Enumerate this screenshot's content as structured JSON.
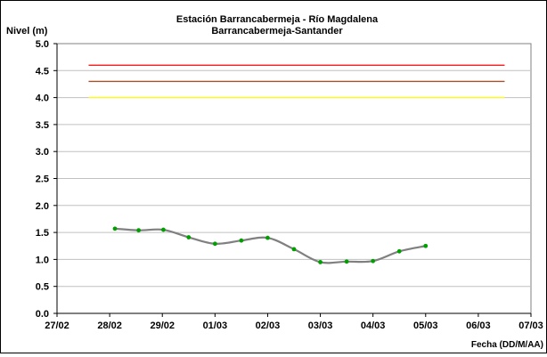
{
  "chart_data": {
    "type": "line",
    "title": "Estación Barrancabermeja - Río Magdalena",
    "subtitle": "Barrancabermeja-Santander",
    "ylabel": "Nivel (m)",
    "xlabel": "Fecha (DD/M/AA)",
    "ylim": [
      0.0,
      5.0
    ],
    "xlim": [
      0,
      9
    ],
    "x_ticks": [
      {
        "value": 0,
        "label": "27/02"
      },
      {
        "value": 1,
        "label": "28/02"
      },
      {
        "value": 2,
        "label": "29/02"
      },
      {
        "value": 3,
        "label": "01/03"
      },
      {
        "value": 4,
        "label": "02/03"
      },
      {
        "value": 5,
        "label": "03/03"
      },
      {
        "value": 6,
        "label": "04/03"
      },
      {
        "value": 7,
        "label": "05/03"
      },
      {
        "value": 8,
        "label": "06/03"
      },
      {
        "value": 9,
        "label": "07/03"
      }
    ],
    "y_ticks": [
      {
        "value": 0.0,
        "label": "0.0"
      },
      {
        "value": 0.5,
        "label": "0.5"
      },
      {
        "value": 1.0,
        "label": "1.0"
      },
      {
        "value": 1.5,
        "label": "1.5"
      },
      {
        "value": 2.0,
        "label": "2.0"
      },
      {
        "value": 2.5,
        "label": "2.5"
      },
      {
        "value": 3.0,
        "label": "3.0"
      },
      {
        "value": 3.5,
        "label": "3.5"
      },
      {
        "value": 4.0,
        "label": "4.0"
      },
      {
        "value": 4.5,
        "label": "4.5"
      },
      {
        "value": 5.0,
        "label": "5.0"
      }
    ],
    "grid": {
      "horizontal": true,
      "vertical": false
    },
    "thresholds": [
      {
        "value": 4.6,
        "x_start": 0.6,
        "x_end": 8.5,
        "color": "#ff0000"
      },
      {
        "value": 4.3,
        "x_start": 0.6,
        "x_end": 8.5,
        "color": "#a0522d"
      },
      {
        "value": 4.0,
        "x_start": 0.6,
        "x_end": 8.5,
        "color": "#ffff00"
      }
    ],
    "series": [
      {
        "line_color": "#808080",
        "marker_color": "#00a000",
        "points": [
          {
            "x": 1.1,
            "y": 1.57
          },
          {
            "x": 1.55,
            "y": 1.54
          },
          {
            "x": 2.02,
            "y": 1.55
          },
          {
            "x": 2.5,
            "y": 1.41
          },
          {
            "x": 3.0,
            "y": 1.29
          },
          {
            "x": 3.5,
            "y": 1.35
          },
          {
            "x": 4.0,
            "y": 1.4
          },
          {
            "x": 4.5,
            "y": 1.19
          },
          {
            "x": 5.0,
            "y": 0.95
          },
          {
            "x": 5.5,
            "y": 0.96
          },
          {
            "x": 6.0,
            "y": 0.97
          },
          {
            "x": 6.5,
            "y": 1.15
          },
          {
            "x": 7.0,
            "y": 1.25
          }
        ]
      }
    ]
  }
}
